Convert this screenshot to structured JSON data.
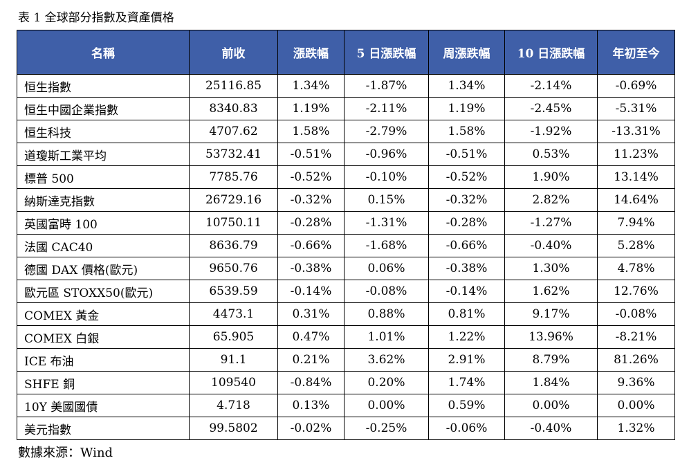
{
  "caption": "表 1 全球部分指數及資產價格",
  "table": {
    "headers": [
      "名稱",
      "前收",
      "漲跌幅",
      "5 日漲跌幅",
      "周漲跌幅",
      "10 日漲跌幅",
      "年初至今"
    ],
    "rows": [
      [
        "恒生指數",
        "25116.85",
        "1.34%",
        "-1.87%",
        "1.34%",
        "-2.14%",
        "-0.69%"
      ],
      [
        "恒生中國企業指數",
        "8340.83",
        "1.19%",
        "-2.11%",
        "1.19%",
        "-2.45%",
        "-5.31%"
      ],
      [
        "恒生科技",
        "4707.62",
        "1.58%",
        "-2.79%",
        "1.58%",
        "-1.92%",
        "-13.31%"
      ],
      [
        "道瓊斯工業平均",
        "53732.41",
        "-0.51%",
        "-0.96%",
        "-0.51%",
        "0.53%",
        "11.23%"
      ],
      [
        "標普 500",
        "7785.76",
        "-0.52%",
        "-0.10%",
        "-0.52%",
        "1.90%",
        "13.14%"
      ],
      [
        "納斯達克指數",
        "26729.16",
        "-0.32%",
        "0.15%",
        "-0.32%",
        "2.82%",
        "14.64%"
      ],
      [
        "英國富時 100",
        "10750.11",
        "-0.28%",
        "-1.31%",
        "-0.28%",
        "-1.27%",
        "7.94%"
      ],
      [
        "法國 CAC40",
        "8636.79",
        "-0.66%",
        "-1.68%",
        "-0.66%",
        "-0.40%",
        "5.28%"
      ],
      [
        "德國 DAX 價格(歐元)",
        "9650.76",
        "-0.38%",
        "0.06%",
        "-0.38%",
        "1.30%",
        "4.78%"
      ],
      [
        "歐元區 STOXX50(歐元)",
        "6539.59",
        "-0.14%",
        "-0.08%",
        "-0.14%",
        "1.62%",
        "12.76%"
      ],
      [
        "COMEX 黃金",
        "4473.1",
        "0.31%",
        "0.88%",
        "0.81%",
        "9.17%",
        "-0.08%"
      ],
      [
        "COMEX 白銀",
        "65.905",
        "0.47%",
        "1.01%",
        "1.22%",
        "13.96%",
        "-8.21%"
      ],
      [
        "ICE 布油",
        "91.1",
        "0.21%",
        "3.62%",
        "2.91%",
        "8.79%",
        "81.26%"
      ],
      [
        "SHFE 銅",
        "109540",
        "-0.84%",
        "0.20%",
        "1.74%",
        "1.84%",
        "9.36%"
      ],
      [
        "10Y  美國國債",
        "4.718",
        "0.13%",
        "0.00%",
        "0.59%",
        "0.00%",
        "0.00%"
      ],
      [
        "美元指數",
        "99.5802",
        "-0.02%",
        "-0.25%",
        "-0.06%",
        "-0.40%",
        "1.32%"
      ]
    ]
  },
  "source": "數據來源：Wind",
  "colors": {
    "header_bg": "#3f5fa8",
    "header_text": "#ffffff",
    "border": "#000000"
  }
}
